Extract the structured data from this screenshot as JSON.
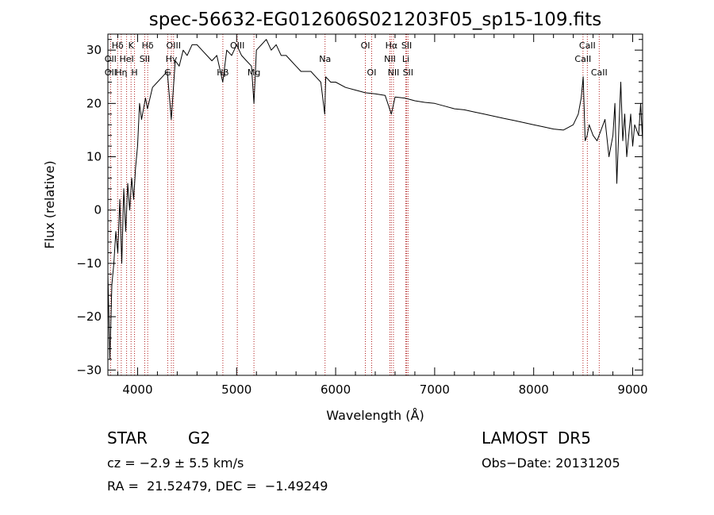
{
  "chart_data": {
    "type": "line",
    "title": "spec-56632-EG012606S021203F05_sp15-109.fits",
    "xlabel": "Wavelength (Å)",
    "ylabel": "Flux (relative)",
    "xlim": [
      3700,
      9100
    ],
    "ylim": [
      -31,
      33
    ],
    "xticks": [
      4000,
      5000,
      6000,
      7000,
      8000,
      9000
    ],
    "yticks": [
      -30,
      -20,
      -10,
      0,
      10,
      20,
      30
    ],
    "grid": false,
    "series": [
      {
        "x": [
          3700,
          3720,
          3740,
          3760,
          3780,
          3800,
          3820,
          3840,
          3860,
          3880,
          3900,
          3920,
          3940,
          3960,
          3980,
          4000,
          4020,
          4040,
          4060,
          4080,
          4100,
          4150,
          4200,
          4250,
          4300,
          4340,
          4380,
          4420,
          4460,
          4500,
          4550,
          4600,
          4650,
          4700,
          4750,
          4800,
          4860,
          4900,
          4950,
          5000,
          5050,
          5100,
          5150,
          5175,
          5200,
          5250,
          5300,
          5350,
          5400,
          5450,
          5500,
          5550,
          5600,
          5650,
          5700,
          5750,
          5800,
          5850,
          5890,
          5900,
          5950,
          6000,
          6100,
          6200,
          6300,
          6400,
          6500,
          6563,
          6600,
          6700,
          6800,
          6900,
          7000,
          7100,
          7200,
          7300,
          7400,
          7500,
          7600,
          7700,
          7800,
          7900,
          8000,
          8100,
          8200,
          8300,
          8350,
          8400,
          8450,
          8480,
          8500,
          8520,
          8540,
          8560,
          8600,
          8640,
          8680,
          8720,
          8760,
          8800,
          8820,
          8840,
          8860,
          8880,
          8900,
          8920,
          8940,
          8960,
          8980,
          9000,
          9020,
          9040,
          9060,
          9080,
          9100
        ],
        "values": [
          -12,
          -28,
          -14,
          -10,
          -4,
          -8,
          2,
          -10,
          4,
          -4,
          5,
          0,
          6,
          2,
          8,
          12,
          20,
          17,
          19,
          21,
          19,
          23,
          24,
          25,
          26,
          17,
          28,
          27,
          30,
          29,
          31,
          31,
          30,
          29,
          28,
          29,
          24,
          30,
          29,
          31,
          29,
          28,
          27,
          20,
          30,
          31,
          32,
          30,
          31,
          29,
          29,
          28,
          27,
          26,
          26,
          26,
          25,
          24,
          18,
          25,
          24,
          24,
          23,
          22.5,
          22,
          21.8,
          21.5,
          18,
          21.2,
          21,
          20.5,
          20.2,
          20,
          19.5,
          19,
          18.8,
          18.4,
          18,
          17.6,
          17.2,
          16.8,
          16.4,
          16,
          15.6,
          15.2,
          15,
          15.5,
          16,
          18,
          21,
          25,
          13,
          14,
          16,
          14,
          13,
          15,
          17,
          10,
          14,
          20,
          5,
          15,
          24,
          13,
          18,
          10,
          14,
          18,
          12,
          16,
          15,
          14,
          20,
          13
        ]
      }
    ],
    "line_labels": [
      {
        "name": "Hδ",
        "x": 3798,
        "row": 1
      },
      {
        "name": "OII",
        "x": 3727,
        "row": 2
      },
      {
        "name": "OII",
        "x": 3727,
        "row": 3
      },
      {
        "name": "K",
        "x": 3934,
        "row": 1
      },
      {
        "name": "HeI",
        "x": 3889,
        "row": 2
      },
      {
        "name": "Hη",
        "x": 3835,
        "row": 3
      },
      {
        "name": "Hδ",
        "x": 4102,
        "row": 1
      },
      {
        "name": "SII",
        "x": 4072,
        "row": 2
      },
      {
        "name": "H",
        "x": 3969,
        "row": 3
      },
      {
        "name": "OIII",
        "x": 4363,
        "row": 1
      },
      {
        "name": "Hγ",
        "x": 4341,
        "row": 2
      },
      {
        "name": "G",
        "x": 4304,
        "row": 3
      },
      {
        "name": "OIII",
        "x": 5007,
        "row": 1
      },
      {
        "name": "Hβ",
        "x": 4861,
        "row": 3
      },
      {
        "name": "Mg",
        "x": 5175,
        "row": 3
      },
      {
        "name": "Na",
        "x": 5893,
        "row": 2
      },
      {
        "name": "OI",
        "x": 6300,
        "row": 1
      },
      {
        "name": "OI",
        "x": 6364,
        "row": 3
      },
      {
        "name": "Hα",
        "x": 6563,
        "row": 1
      },
      {
        "name": "SII",
        "x": 6717,
        "row": 1
      },
      {
        "name": "NII",
        "x": 6548,
        "row": 2
      },
      {
        "name": "Li",
        "x": 6708,
        "row": 2
      },
      {
        "name": "NII",
        "x": 6584,
        "row": 3
      },
      {
        "name": "SII",
        "x": 6731,
        "row": 3
      },
      {
        "name": "CaII",
        "x": 8542,
        "row": 1
      },
      {
        "name": "CaII",
        "x": 8498,
        "row": 2
      },
      {
        "name": "CaII",
        "x": 8662,
        "row": 3
      }
    ],
    "line_positions": [
      3727,
      3798,
      3835,
      3889,
      3934,
      3969,
      4072,
      4102,
      4304,
      4341,
      4363,
      4861,
      5007,
      5175,
      5893,
      6300,
      6364,
      6548,
      6563,
      6584,
      6708,
      6717,
      6731,
      8498,
      8542,
      8662
    ],
    "colors": {
      "spectrum": "#000000",
      "lines": "#b22222",
      "axes": "#000000"
    }
  },
  "footer": {
    "object": "STAR",
    "subclass": "G2",
    "survey": "LAMOST  DR5",
    "cz": "cz = −2.9 ± 5.5 km/s",
    "obs_date": "Obs−Date: 20131205",
    "coords": "RA =  21.52479, DEC =  −1.49249"
  }
}
